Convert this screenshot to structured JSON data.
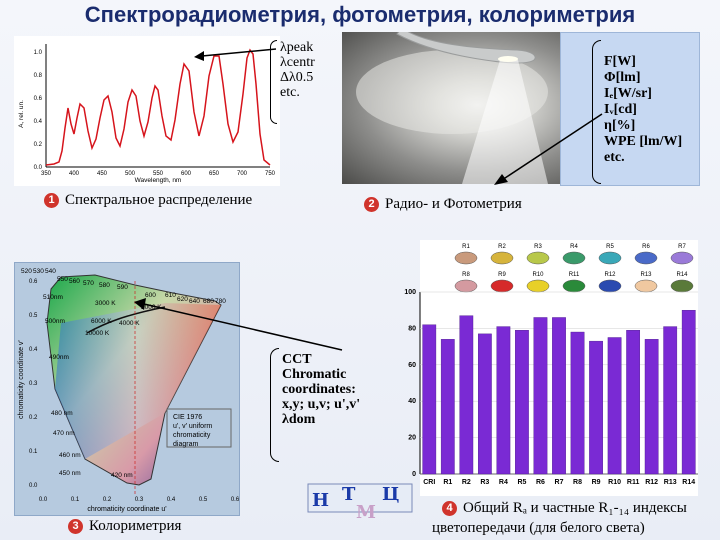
{
  "title": "Спектрорадиометрия, фотометрия, колориметрия",
  "spectrum_params": [
    "λpeak",
    "λcentr",
    "Δλ0.5",
    "etc."
  ],
  "photo_params": [
    "F[W]",
    "Φ[lm]",
    "Iₑ[W/sr]",
    "Iᵥ[cd]",
    "η[%]",
    "WPE [lm/W]",
    "etc."
  ],
  "colorimetry_params": [
    "CCT",
    "Chromatic",
    "coordinates:",
    "x,y; u,v; u',v'",
    "λdom"
  ],
  "captions": {
    "c1": "Спектральное распределение",
    "c2": "Радио- и Фотометрия",
    "c3": "Колориметрия",
    "c4_line1": "Общий Rₐ и частные R₁-₁₄ индексы",
    "c4_line2": "цветопередачи (для белого света)"
  },
  "markers": {
    "m1": "1",
    "m2": "2",
    "m3": "3",
    "m4": "4"
  },
  "spectrum_chart": {
    "xlabel": "Wavelength, nm",
    "ylabel": "A, rel. un.",
    "xticks": [
      "350",
      "400",
      "450",
      "500",
      "550",
      "600",
      "650",
      "700",
      "750"
    ],
    "yticks": [
      "0.0",
      "0.2",
      "0.4",
      "0.6",
      "0.8",
      "1.0"
    ]
  },
  "cie_chart": {
    "ylabel": "chromaticity coordinate v'",
    "xlabel": "chromaticity coordinate u'",
    "top_labels": [
      "520",
      "530",
      "540",
      "550",
      "560",
      "570",
      "580",
      "590",
      "600",
      "610",
      "620",
      "640",
      "680",
      "780"
    ],
    "side_labels": [
      "510nm",
      "500nm",
      "490nm",
      "480 nm",
      "470 nm",
      "460 nm",
      "450 nm",
      "420 nm"
    ],
    "cct_labels": [
      "3000 K",
      "2000 K",
      "4000 K",
      "6000 K",
      "10000 K"
    ],
    "legend": [
      "CIE 1976",
      "u', v' uniform",
      "chromaticity",
      "diagram"
    ],
    "yticks": [
      "0.6",
      "0.5",
      "0.4",
      "0.3",
      "0.2",
      "0.1",
      "0.0"
    ],
    "xticks": [
      "0.0",
      "0.1",
      "0.2",
      "0.3",
      "0.4",
      "0.5",
      "0.6"
    ]
  },
  "swatches_row1": [
    "R1",
    "R2",
    "R3",
    "R4",
    "R5",
    "R6",
    "R7"
  ],
  "swatches_row2": [
    "R8",
    "R9",
    "R10",
    "R11",
    "R12",
    "R13",
    "R14"
  ],
  "swatch_colors_row1": [
    "#c99a7c",
    "#d6b43c",
    "#b8c84a",
    "#3a9a6a",
    "#3aa8b8",
    "#4a6ac8",
    "#9a7ad8"
  ],
  "swatch_colors_row2": [
    "#d49aa0",
    "#d62a2a",
    "#e8d028",
    "#2a8a3a",
    "#2a4ab0",
    "#f0c8a0",
    "#5a7a3a"
  ],
  "logo_letters": [
    "Н",
    "Т",
    "Ц",
    "М"
  ],
  "chart_data": {
    "type": "bar",
    "categories": [
      "CRI",
      "R1",
      "R2",
      "R3",
      "R4",
      "R5",
      "R6",
      "R7",
      "R8",
      "R9",
      "R10",
      "R11",
      "R12",
      "R13",
      "R14"
    ],
    "values": [
      82,
      74,
      87,
      77,
      81,
      79,
      86,
      86,
      78,
      73,
      75,
      79,
      74,
      81,
      90
    ],
    "ylim": [
      0,
      100
    ],
    "yticks": [
      "0",
      "20",
      "40",
      "60",
      "80",
      "100"
    ],
    "color": "#7a2ad4"
  }
}
